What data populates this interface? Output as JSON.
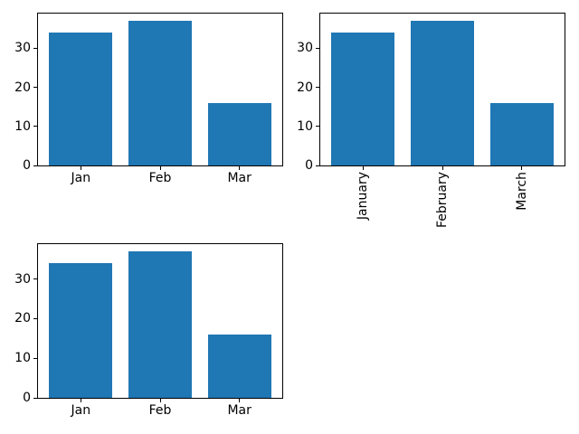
{
  "figure": {
    "background": "#ffffff",
    "axis_color": "#000000",
    "subplot_grid": "2x2 (bottom-right empty)"
  },
  "chart_data": [
    {
      "type": "bar",
      "subplot": "top-left",
      "categories": [
        "Jan",
        "Feb",
        "Mar"
      ],
      "values": [
        34,
        37,
        16
      ],
      "yticks": [
        0,
        10,
        20,
        30
      ],
      "ylim": [
        0,
        38.85
      ],
      "xtick_rotation": 0,
      "bar_color": "#1f77b4",
      "bar_width": 0.8,
      "title": "",
      "xlabel": "",
      "ylabel": "",
      "grid": false,
      "legend": false
    },
    {
      "type": "bar",
      "subplot": "top-right",
      "categories": [
        "January",
        "February",
        "March"
      ],
      "values": [
        34,
        37,
        16
      ],
      "yticks": [
        0,
        10,
        20,
        30
      ],
      "ylim": [
        0,
        38.85
      ],
      "xtick_rotation": 90,
      "bar_color": "#1f77b4",
      "bar_width": 0.8,
      "title": "",
      "xlabel": "",
      "ylabel": "",
      "grid": false,
      "legend": false
    },
    {
      "type": "bar",
      "subplot": "bottom-left",
      "categories": [
        "Jan",
        "Feb",
        "Mar"
      ],
      "values": [
        34,
        37,
        16
      ],
      "yticks": [
        0,
        10,
        20,
        30
      ],
      "ylim": [
        0,
        38.85
      ],
      "xtick_rotation": 0,
      "bar_color": "#1f77b4",
      "bar_width": 0.8,
      "title": "",
      "xlabel": "",
      "ylabel": "",
      "grid": false,
      "legend": false
    }
  ]
}
